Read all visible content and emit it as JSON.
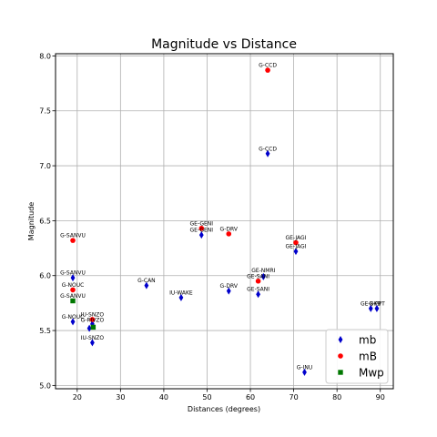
{
  "chart_data": {
    "type": "scatter",
    "title": "Magnitude vs Distance",
    "xlabel": "Distances (degrees)",
    "ylabel": "Magnitude",
    "xlim": [
      15,
      93
    ],
    "ylim": [
      4.97,
      8.02
    ],
    "xticks": [
      20,
      30,
      40,
      50,
      60,
      70,
      80,
      90
    ],
    "yticks": [
      5.0,
      5.5,
      6.0,
      6.5,
      7.0,
      7.5,
      8.0
    ],
    "grid": true,
    "legend_position": "bottom-right",
    "series": [
      {
        "name": "mb",
        "marker": "diamond",
        "color": "#0000cc",
        "points": [
          {
            "x": 64.0,
            "y": 7.11,
            "label": "G-CCD"
          },
          {
            "x": 48.7,
            "y": 6.37,
            "label": "GE-GENI"
          },
          {
            "x": 70.5,
            "y": 6.22,
            "label": "GE-JAGI"
          },
          {
            "x": 19.0,
            "y": 5.98,
            "label": "G-SANVU"
          },
          {
            "x": 63.0,
            "y": 5.99,
            "label": "GE-NMRI"
          },
          {
            "x": 36.0,
            "y": 5.91,
            "label": "G-CAN"
          },
          {
            "x": 55.0,
            "y": 5.86,
            "label": "G-DRV"
          },
          {
            "x": 61.8,
            "y": 5.83,
            "label": "GE-SANI"
          },
          {
            "x": 44.0,
            "y": 5.8,
            "label": "IU-WAKE"
          },
          {
            "x": 87.8,
            "y": 5.7,
            "label": "GE-BKB"
          },
          {
            "x": 89.2,
            "y": 5.7,
            "label": "G-PPT"
          },
          {
            "x": 19.0,
            "y": 5.58,
            "label": "G-NOUC"
          },
          {
            "x": 23.5,
            "y": 5.56,
            "label": "IU-SNZO"
          },
          {
            "x": 22.8,
            "y": 5.52,
            "label": "G-RIVZO"
          },
          {
            "x": 23.5,
            "y": 5.39,
            "label": "IU-SNZO"
          },
          {
            "x": 72.5,
            "y": 5.12,
            "label": "G-INU"
          }
        ]
      },
      {
        "name": "mB",
        "marker": "circle",
        "color": "#ff0000",
        "points": [
          {
            "x": 64.0,
            "y": 7.87,
            "label": "G-CCD"
          },
          {
            "x": 48.7,
            "y": 6.43,
            "label": "GE-GENI"
          },
          {
            "x": 55.0,
            "y": 6.38,
            "label": "G-DRV"
          },
          {
            "x": 70.5,
            "y": 6.3,
            "label": "GE-JAGI"
          },
          {
            "x": 19.0,
            "y": 6.32,
            "label": "G-SANVU"
          },
          {
            "x": 61.8,
            "y": 5.95,
            "label": "GE-SANI"
          },
          {
            "x": 19.0,
            "y": 5.87,
            "label": "G-NOUC"
          },
          {
            "x": 23.5,
            "y": 5.6,
            "label": "IU-SNZO"
          }
        ]
      },
      {
        "name": "Mwp",
        "marker": "square",
        "color": "#007700",
        "points": [
          {
            "x": 19.0,
            "y": 5.77,
            "label": "G-SANVU"
          },
          {
            "x": 23.7,
            "y": 5.53,
            "label": "G-RIVZO"
          }
        ]
      }
    ],
    "point_label_entries": [
      {
        "text": "G-CCD",
        "x": 64.0,
        "y": 7.87
      },
      {
        "text": "G-CCD",
        "x": 64.0,
        "y": 7.11
      },
      {
        "text": "GE-GENI",
        "x": 48.7,
        "y": 6.43
      },
      {
        "text": "GE-GENI",
        "x": 48.7,
        "y": 6.37
      },
      {
        "text": "G-DRV",
        "x": 55.0,
        "y": 6.38
      },
      {
        "text": "GE-JAGI",
        "x": 70.5,
        "y": 6.3
      },
      {
        "text": "GE-JAGI",
        "x": 70.5,
        "y": 6.22
      },
      {
        "text": "G-SANVU",
        "x": 19.0,
        "y": 6.32
      },
      {
        "text": "G-SANVU",
        "x": 19.0,
        "y": 5.98
      },
      {
        "text": "G-SANVU",
        "x": 19.0,
        "y": 5.77
      },
      {
        "text": "GE-NMRI",
        "x": 63.0,
        "y": 6.0
      },
      {
        "text": "GE-SANI",
        "x": 61.8,
        "y": 5.95
      },
      {
        "text": "GE-SANI",
        "x": 61.8,
        "y": 5.83
      },
      {
        "text": "G-CAN",
        "x": 36.0,
        "y": 5.91
      },
      {
        "text": "G-NOUC",
        "x": 19.0,
        "y": 5.87
      },
      {
        "text": "G-NOUC",
        "x": 19.0,
        "y": 5.58
      },
      {
        "text": "G-DRV",
        "x": 55.0,
        "y": 5.86
      },
      {
        "text": "IU-WAKE",
        "x": 44.0,
        "y": 5.8
      },
      {
        "text": "GE-BKB",
        "x": 87.8,
        "y": 5.7
      },
      {
        "text": "G-PPT",
        "x": 89.2,
        "y": 5.7
      },
      {
        "text": "IU-SNZO",
        "x": 23.5,
        "y": 5.6
      },
      {
        "text": "G-RIVZO",
        "x": 23.5,
        "y": 5.55
      },
      {
        "text": "IU-SNZO",
        "x": 23.5,
        "y": 5.39
      },
      {
        "text": "G-INU",
        "x": 72.5,
        "y": 5.12
      }
    ]
  }
}
